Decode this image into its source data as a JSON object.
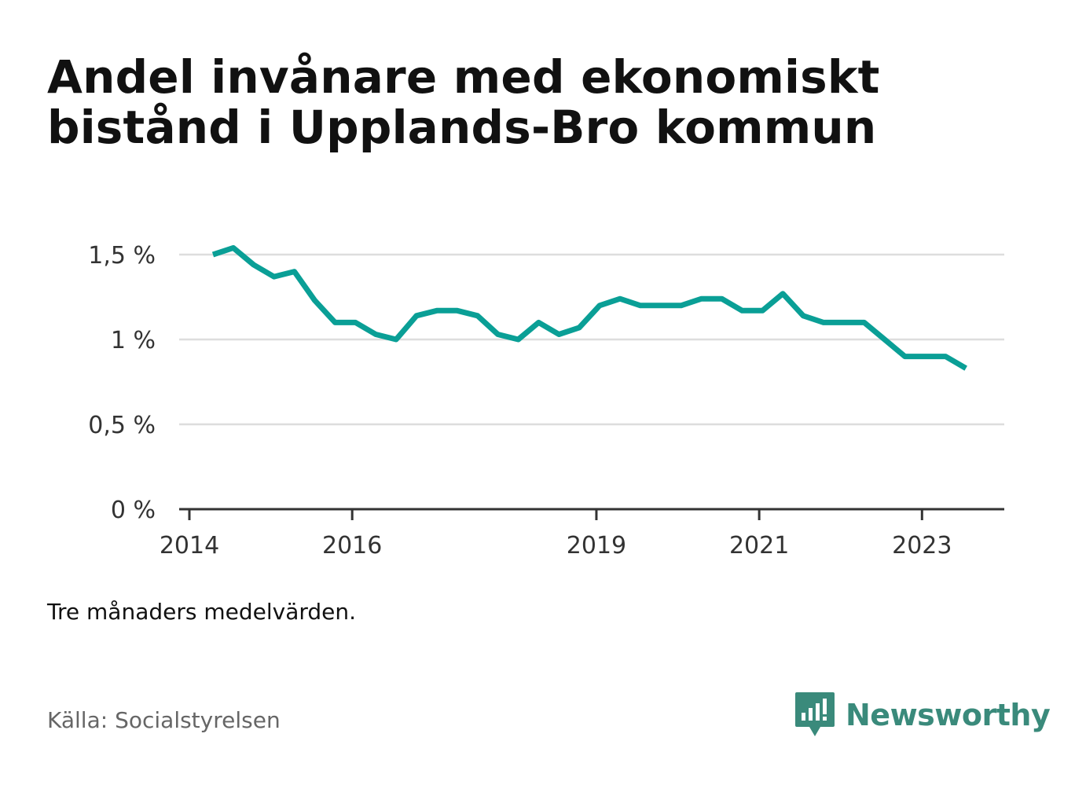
{
  "title": "Andel invånare med ekonomiskt bistånd i Upplands-Bro kommun",
  "note": "Tre månaders medelvärden.",
  "source": "Källa: Socialstyrelsen",
  "brand": {
    "name": "Newsworthy",
    "icon": "newsworthy-logo-icon",
    "color": "#3a8a7b"
  },
  "chart_data": {
    "type": "line",
    "x_type": "date",
    "xticks": [
      2014,
      2016,
      2019,
      2021,
      2023
    ],
    "yticks": [
      0,
      0.5,
      1,
      1.5
    ],
    "ytick_labels": [
      "0 %",
      "0,5 %",
      "1 %",
      "1,5 %"
    ],
    "ylim": [
      0,
      1.6
    ],
    "xlim": [
      2014.0,
      2024.03
    ],
    "grid": true,
    "line_color": "#0a9f96",
    "series": [
      {
        "x": [
          2014.29,
          2014.54,
          2014.79,
          2015.04,
          2015.29,
          2015.54,
          2015.79,
          2016.04,
          2016.29,
          2016.54,
          2016.79,
          2017.04,
          2017.29,
          2017.54,
          2017.79,
          2018.04,
          2018.29,
          2018.54,
          2018.79,
          2019.04,
          2019.29,
          2019.54,
          2019.79,
          2020.04,
          2020.29,
          2020.54,
          2020.79,
          2021.04,
          2021.29,
          2021.54,
          2021.79,
          2022.04,
          2022.29,
          2022.54,
          2022.79,
          2023.04,
          2023.29,
          2023.54
        ],
        "y": [
          1.5,
          1.54,
          1.44,
          1.37,
          1.4,
          1.23,
          1.1,
          1.1,
          1.03,
          1.0,
          1.14,
          1.17,
          1.17,
          1.14,
          1.03,
          1.0,
          1.1,
          1.03,
          1.07,
          1.2,
          1.24,
          1.2,
          1.2,
          1.2,
          1.24,
          1.24,
          1.17,
          1.17,
          1.27,
          1.14,
          1.1,
          1.1,
          1.1,
          1.0,
          0.9,
          0.9,
          0.9,
          0.83
        ]
      }
    ]
  }
}
